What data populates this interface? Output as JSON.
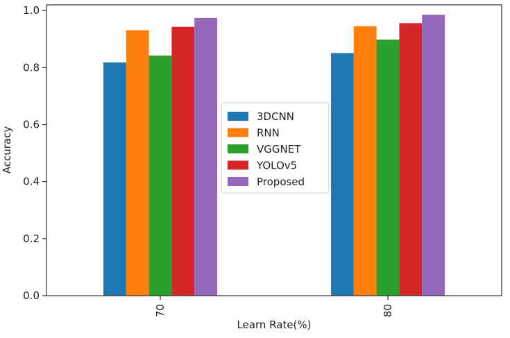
{
  "chart_data": {
    "type": "bar",
    "title": "",
    "xlabel": "Learn Rate(%)",
    "ylabel": "Accuracy",
    "categories": [
      "70",
      "80"
    ],
    "ylim": [
      0,
      1.02
    ],
    "yticks": [
      "0.0",
      "0.2",
      "0.4",
      "0.6",
      "0.8",
      "1.0"
    ],
    "grid": false,
    "legend_position": "center",
    "series": [
      {
        "name": "3DCNN",
        "color": "#1f77b4",
        "values": [
          0.818,
          0.851
        ]
      },
      {
        "name": "RNN",
        "color": "#ff7f0e",
        "values": [
          0.931,
          0.945
        ]
      },
      {
        "name": "VGGNET",
        "color": "#2ca02c",
        "values": [
          0.842,
          0.898
        ]
      },
      {
        "name": "YOLOv5",
        "color": "#d62728",
        "values": [
          0.943,
          0.956
        ]
      },
      {
        "name": "Proposed",
        "color": "#9467bd",
        "values": [
          0.974,
          0.985
        ]
      }
    ]
  }
}
